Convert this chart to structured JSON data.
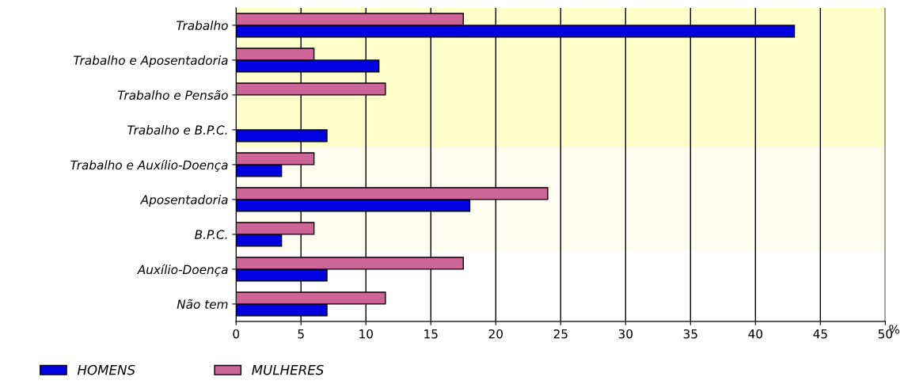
{
  "chart_data": {
    "type": "bar",
    "orientation": "horizontal",
    "xlabel": "%",
    "categories": [
      "Trabalho",
      "Trabalho e Aposentadoria",
      "Trabalho e Pensão",
      "Trabalho e B.P.C.",
      "Trabalho e Auxílio-Doença",
      "Aposentadoria",
      "B.P.C.",
      "Auxílio-Doença",
      "Não tem"
    ],
    "series": [
      {
        "name": "HOMENS",
        "color": "#0000e0",
        "values": [
          43,
          11,
          null,
          7,
          3.5,
          18,
          3.5,
          7,
          7
        ]
      },
      {
        "name": "MULHERES",
        "color": "#cc6699",
        "values": [
          17.5,
          6,
          11.5,
          null,
          6,
          24,
          6,
          17.5,
          11.5
        ]
      }
    ],
    "xlim": [
      0,
      50
    ],
    "xticks": [
      0,
      5,
      10,
      15,
      20,
      25,
      30,
      35,
      40,
      45,
      50
    ],
    "grid": "x",
    "legend": "bottom left",
    "bands": [
      {
        "axis": "y",
        "from": "Trabalho",
        "to": "Trabalho e B.P.C.",
        "color": "#ffffcc"
      },
      {
        "axis": "y",
        "from": "Trabalho e Auxílio-Doença",
        "to": "B.P.C.",
        "color": "#fffdf0"
      }
    ]
  }
}
